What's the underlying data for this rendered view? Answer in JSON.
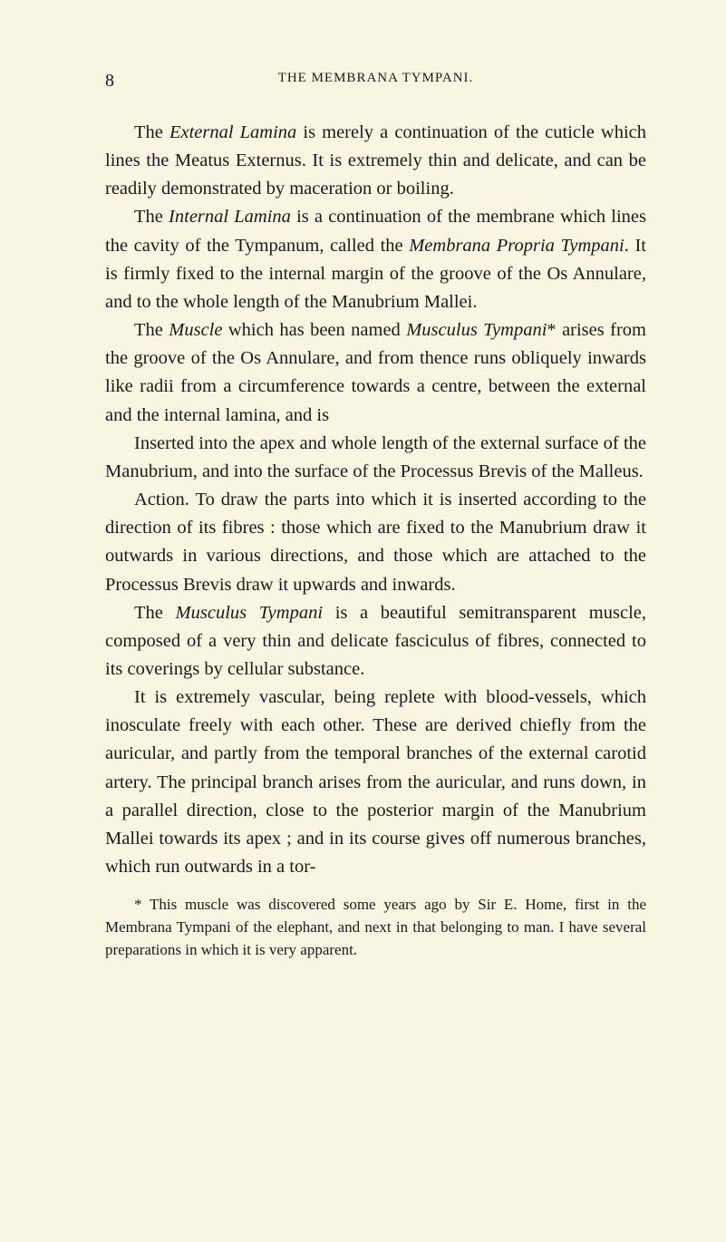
{
  "page_number": "8",
  "header": "THE MEMBRANA TYMPANI.",
  "paragraphs": [
    "The <em>External Lamina</em> is merely a continuation of the cuticle which lines the Meatus Externus. It is extremely thin and delicate, and can be readily demonstrated by maceration or boiling.",
    "The <em>Internal Lamina</em> is a continuation of the membrane which lines the cavity of the Tympanum, called the <em>Membrana Propria Tympani</em>. It is firmly fixed to the internal margin of the groove of the Os Annulare, and to the whole length of the Manubrium Mallei.",
    "The <em>Muscle</em> which has been named <em>Musculus Tympani</em>* arises from the groove of the Os Annulare, and from thence runs obliquely inwards like radii from a circumference towards a centre, between the external and the internal lamina, and is",
    "Inserted into the apex and whole length of the external surface of the Manubrium, and into the surface of the Processus Brevis of the Malleus.",
    "Action. To draw the parts into which it is inserted according to the direction of its fibres : those which are fixed to the Manubrium draw it outwards in various directions, and those which are attached to the Processus Brevis draw it upwards and inwards.",
    "The <em>Musculus Tympani</em> is a beautiful semitransparent muscle, composed of a very thin and delicate fasciculus of fibres, connected to its coverings by cellular substance.",
    "It is extremely vascular, being replete with blood-vessels, which inosculate freely with each other. These are derived chiefly from the auricular, and partly from the temporal branches of the external carotid artery. The principal branch arises from the auricular, and runs down, in a parallel direction, close to the posterior margin of the Manubrium Mallei towards its apex ; and in its course gives off numerous branches, which run outwards in a tor-"
  ],
  "footnote": "* This muscle was discovered some years ago by Sir E. Home, first in the Membrana Tympani of the elephant, and next in that belonging to man. I have several preparations in which it is very apparent.",
  "colors": {
    "background": "#f9f5e3",
    "text": "#1a1a1a"
  },
  "typography": {
    "body_fontsize": 20.5,
    "header_fontsize": 15,
    "footnote_fontsize": 17,
    "line_height": 1.52,
    "font_family": "Georgia, Times New Roman, serif"
  }
}
